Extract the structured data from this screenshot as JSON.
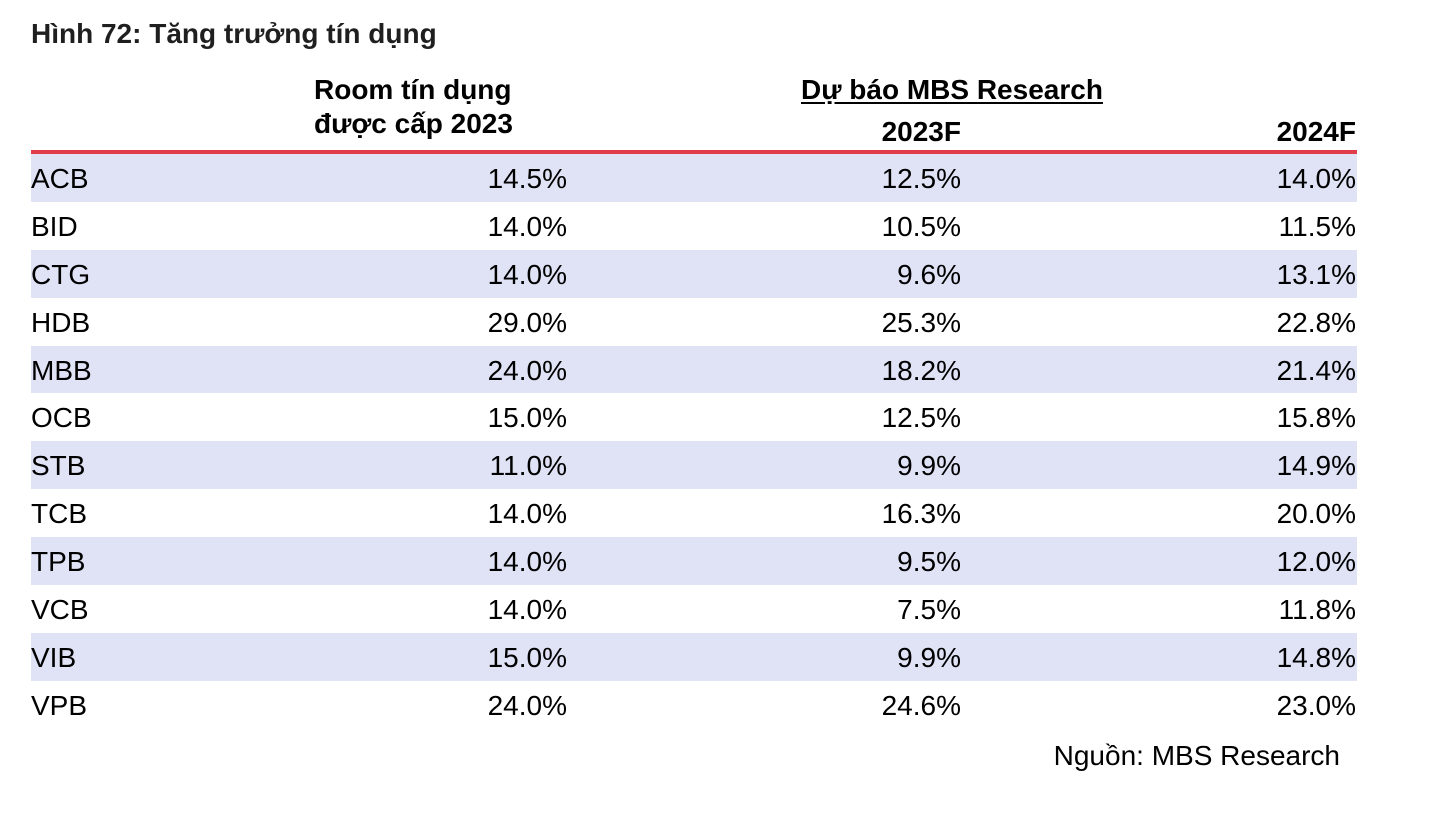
{
  "title": "Hình 72: Tăng trưởng tín dụng",
  "header": {
    "room_line1": "Room tín dụng",
    "room_line2": "được cấp 2023",
    "forecast_group": "Dự báo MBS Research",
    "col_2023f": "2023F",
    "col_2024f": "2024F"
  },
  "accent_color": "#e03c4a",
  "stripe_color": "#dfe3f5",
  "rows": [
    {
      "bank": "ACB",
      "room_2023": "14.5%",
      "f2023": "12.5%",
      "f2024": "14.0%"
    },
    {
      "bank": "BID",
      "room_2023": "14.0%",
      "f2023": "10.5%",
      "f2024": "11.5%"
    },
    {
      "bank": "CTG",
      "room_2023": "14.0%",
      "f2023": "9.6%",
      "f2024": "13.1%"
    },
    {
      "bank": "HDB",
      "room_2023": "29.0%",
      "f2023": "25.3%",
      "f2024": "22.8%"
    },
    {
      "bank": "MBB",
      "room_2023": "24.0%",
      "f2023": "18.2%",
      "f2024": "21.4%"
    },
    {
      "bank": "OCB",
      "room_2023": "15.0%",
      "f2023": "12.5%",
      "f2024": "15.8%"
    },
    {
      "bank": "STB",
      "room_2023": "11.0%",
      "f2023": "9.9%",
      "f2024": "14.9%"
    },
    {
      "bank": "TCB",
      "room_2023": "14.0%",
      "f2023": "16.3%",
      "f2024": "20.0%"
    },
    {
      "bank": "TPB",
      "room_2023": "14.0%",
      "f2023": "9.5%",
      "f2024": "12.0%"
    },
    {
      "bank": "VCB",
      "room_2023": "14.0%",
      "f2023": "7.5%",
      "f2024": "11.8%"
    },
    {
      "bank": "VIB",
      "room_2023": "15.0%",
      "f2023": "9.9%",
      "f2024": "14.8%"
    },
    {
      "bank": "VPB",
      "room_2023": "24.0%",
      "f2023": "24.6%",
      "f2024": "23.0%"
    }
  ],
  "source": "Nguồn: MBS Research"
}
